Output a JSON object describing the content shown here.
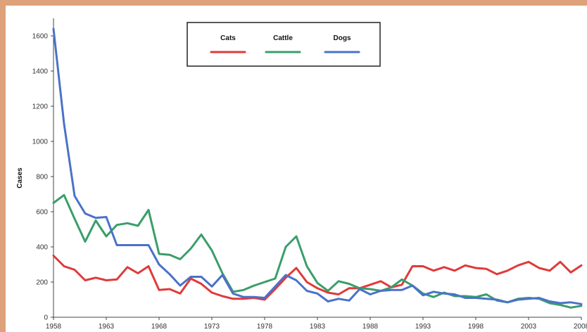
{
  "chart_data": {
    "type": "line",
    "title": "",
    "xlabel": "",
    "ylabel": "Cases",
    "xlim": [
      1958,
      2008
    ],
    "ylim": [
      0,
      1700
    ],
    "x_ticks": [
      1958,
      1963,
      1968,
      1973,
      1978,
      1983,
      1988,
      1993,
      1998,
      2003,
      2008
    ],
    "y_ticks": [
      0,
      200,
      400,
      600,
      800,
      1000,
      1200,
      1400,
      1600
    ],
    "grid": false,
    "legend": {
      "position": "top-center",
      "boxed": true
    },
    "x": [
      1958,
      1959,
      1960,
      1961,
      1962,
      1963,
      1964,
      1965,
      1966,
      1967,
      1968,
      1969,
      1970,
      1971,
      1972,
      1973,
      1974,
      1975,
      1976,
      1977,
      1978,
      1979,
      1980,
      1981,
      1982,
      1983,
      1984,
      1985,
      1986,
      1987,
      1988,
      1989,
      1990,
      1991,
      1992,
      1993,
      1994,
      1995,
      1996,
      1997,
      1998,
      1999,
      2000,
      2001,
      2002,
      2003,
      2004,
      2005,
      2006,
      2007,
      2008
    ],
    "series": [
      {
        "name": "Cats",
        "color": "#e03a3a",
        "values": [
          350,
          290,
          270,
          210,
          225,
          210,
          215,
          285,
          250,
          290,
          155,
          160,
          135,
          220,
          190,
          140,
          120,
          105,
          105,
          110,
          100,
          160,
          225,
          280,
          200,
          165,
          140,
          130,
          165,
          165,
          185,
          205,
          170,
          185,
          290,
          290,
          265,
          285,
          265,
          295,
          280,
          275,
          245,
          265,
          295,
          315,
          280,
          265,
          315,
          255,
          295
        ]
      },
      {
        "name": "Cattle",
        "color": "#3a9e6a",
        "values": [
          650,
          695,
          560,
          430,
          550,
          460,
          525,
          535,
          520,
          610,
          360,
          355,
          330,
          390,
          470,
          380,
          250,
          145,
          155,
          180,
          200,
          220,
          400,
          460,
          290,
          195,
          150,
          205,
          190,
          165,
          160,
          150,
          170,
          215,
          180,
          135,
          115,
          140,
          120,
          120,
          115,
          130,
          95,
          85,
          105,
          110,
          105,
          80,
          70,
          55,
          65
        ]
      },
      {
        "name": "Dogs",
        "color": "#4a72c8",
        "values": [
          1640,
          1100,
          690,
          590,
          565,
          570,
          410,
          410,
          410,
          410,
          300,
          245,
          180,
          230,
          230,
          175,
          240,
          135,
          115,
          115,
          110,
          175,
          240,
          210,
          150,
          135,
          90,
          105,
          95,
          160,
          130,
          150,
          155,
          155,
          180,
          125,
          145,
          135,
          130,
          110,
          110,
          105,
          100,
          85,
          100,
          105,
          110,
          90,
          80,
          85,
          75
        ]
      }
    ]
  }
}
